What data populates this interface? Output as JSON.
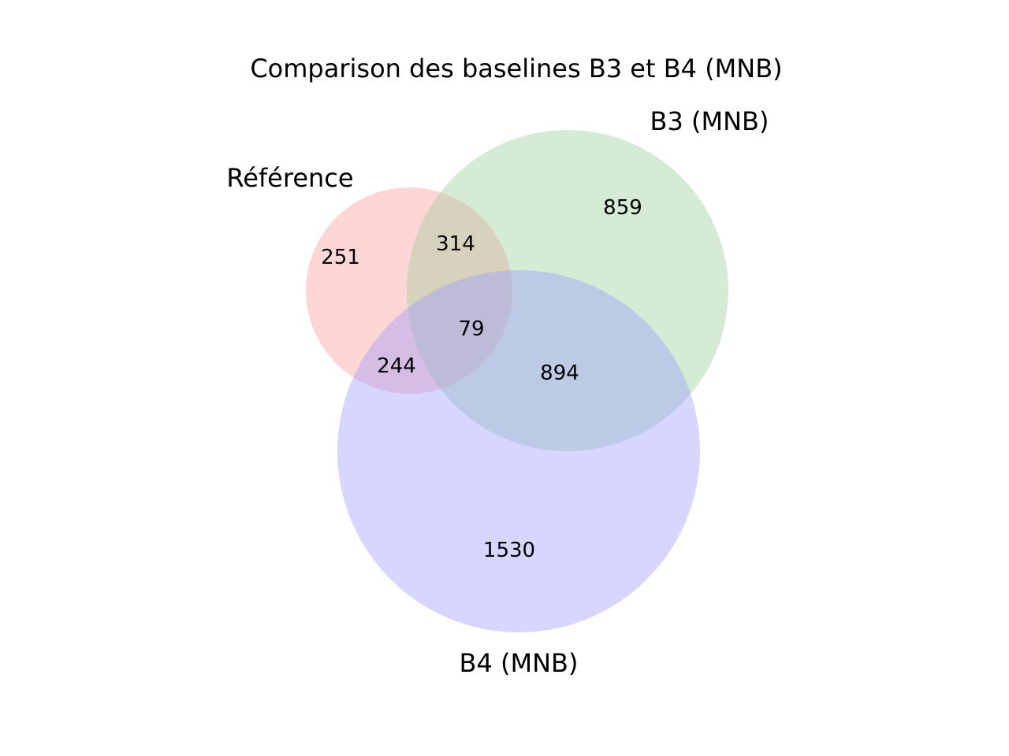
{
  "title": "Comparison des baselines B3 et B4 (MNB)",
  "sets": [
    {
      "key": "reference",
      "label": "Référence",
      "color": "#ff9999"
    },
    {
      "key": "b3",
      "label": "B3 (MNB)",
      "color": "#99cc99"
    },
    {
      "key": "b4",
      "label": "B4 (MNB)",
      "color": "#9999ff"
    }
  ],
  "regions": {
    "reference_only": "251",
    "reference_b3": "314",
    "reference_b3_b4": "79",
    "reference_b4": "244",
    "b3_only": "859",
    "b3_b4": "894",
    "b4_only": "1530"
  }
}
